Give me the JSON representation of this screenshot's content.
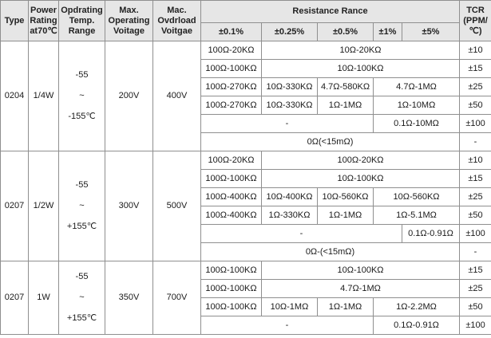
{
  "headers": {
    "type": "Type",
    "power_l1": "Power",
    "power_l2": "Rating",
    "power_l3": "at70℃",
    "temp_l1": "Opdrating",
    "temp_l2": "Temp.",
    "temp_l3": "Range",
    "maxop_l1": "Max.",
    "maxop_l2": "Operating",
    "maxop_l3": "Voitage",
    "overload_l1": "Mac.",
    "overload_l2": "Ovdrload",
    "overload_l3": "Voitgae",
    "resistance_range": "Resistance Rance",
    "tcr_l1": "TCR",
    "tcr_l2": "(PPM/",
    "tcr_l3": "℃)",
    "tol_01": "±0.1%",
    "tol_025": "±0.25%",
    "tol_05": "±0.5%",
    "tol_1": "±1%",
    "tol_5": "±5%"
  },
  "groups": [
    {
      "type": "0204",
      "power": "1/4W",
      "temp_l1": "-55",
      "temp_l2": "~",
      "temp_l3": "-155℃",
      "max_voltage": "200V",
      "overload_voltage": "400V",
      "rows": [
        {
          "cells": [
            "100Ω-20KΩ",
            "10Ω-20KΩ"
          ],
          "tcr": "±10"
        },
        {
          "cells": [
            "100Ω-100KΩ",
            "10Ω-100KΩ"
          ],
          "tcr": "±15"
        },
        {
          "cells": [
            "100Ω-270KΩ",
            "10Ω-330KΩ",
            "4.7Ω-580KΩ",
            "4.7Ω-1MΩ"
          ],
          "tcr": "±25"
        },
        {
          "cells": [
            "100Ω-270KΩ",
            "10Ω-330KΩ",
            "1Ω-1MΩ",
            "1Ω-10MΩ"
          ],
          "tcr": "±50"
        },
        {
          "cells": [
            "-",
            "0.1Ω-10MΩ"
          ],
          "tcr": "±100"
        },
        {
          "cells": [
            "0Ω(<15mΩ)"
          ],
          "tcr": "-"
        }
      ]
    },
    {
      "type": "0207",
      "power": "1/2W",
      "temp_l1": "-55",
      "temp_l2": "~",
      "temp_l3": "+155℃",
      "max_voltage": "300V",
      "overload_voltage": "500V",
      "rows": [
        {
          "cells": [
            "100Ω-20KΩ",
            "100Ω-20KΩ"
          ],
          "tcr": "±10"
        },
        {
          "cells": [
            "100Ω-100KΩ",
            "10Ω-100KΩ"
          ],
          "tcr": "±15"
        },
        {
          "cells": [
            "100Ω-400KΩ",
            "10Ω-400KΩ",
            "10Ω-560KΩ",
            "10Ω-560KΩ"
          ],
          "tcr": "±25"
        },
        {
          "cells": [
            "100Ω-400KΩ",
            "1Ω-330KΩ",
            "1Ω-1MΩ",
            "1Ω-5.1MΩ"
          ],
          "tcr": "±50"
        },
        {
          "cells": [
            "-",
            "0.1Ω-0.91Ω"
          ],
          "tcr": "±100"
        },
        {
          "cells": [
            "0Ω-(<15mΩ)"
          ],
          "tcr": "-"
        }
      ]
    },
    {
      "type": "0207",
      "power": "1W",
      "temp_l1": "-55",
      "temp_l2": "~",
      "temp_l3": "+155℃",
      "max_voltage": "350V",
      "overload_voltage": "700V",
      "rows": [
        {
          "cells": [
            "100Ω-100KΩ",
            "10Ω-100KΩ"
          ],
          "tcr": "±15"
        },
        {
          "cells": [
            "100Ω-100KΩ",
            "4.7Ω-1MΩ"
          ],
          "tcr": "±25"
        },
        {
          "cells": [
            "100Ω-100KΩ",
            "10Ω-1MΩ",
            "1Ω-1MΩ",
            "1Ω-2.2MΩ"
          ],
          "tcr": "±50"
        },
        {
          "cells": [
            "-",
            "0.1Ω-0.91Ω"
          ],
          "tcr": "±100"
        }
      ]
    }
  ]
}
